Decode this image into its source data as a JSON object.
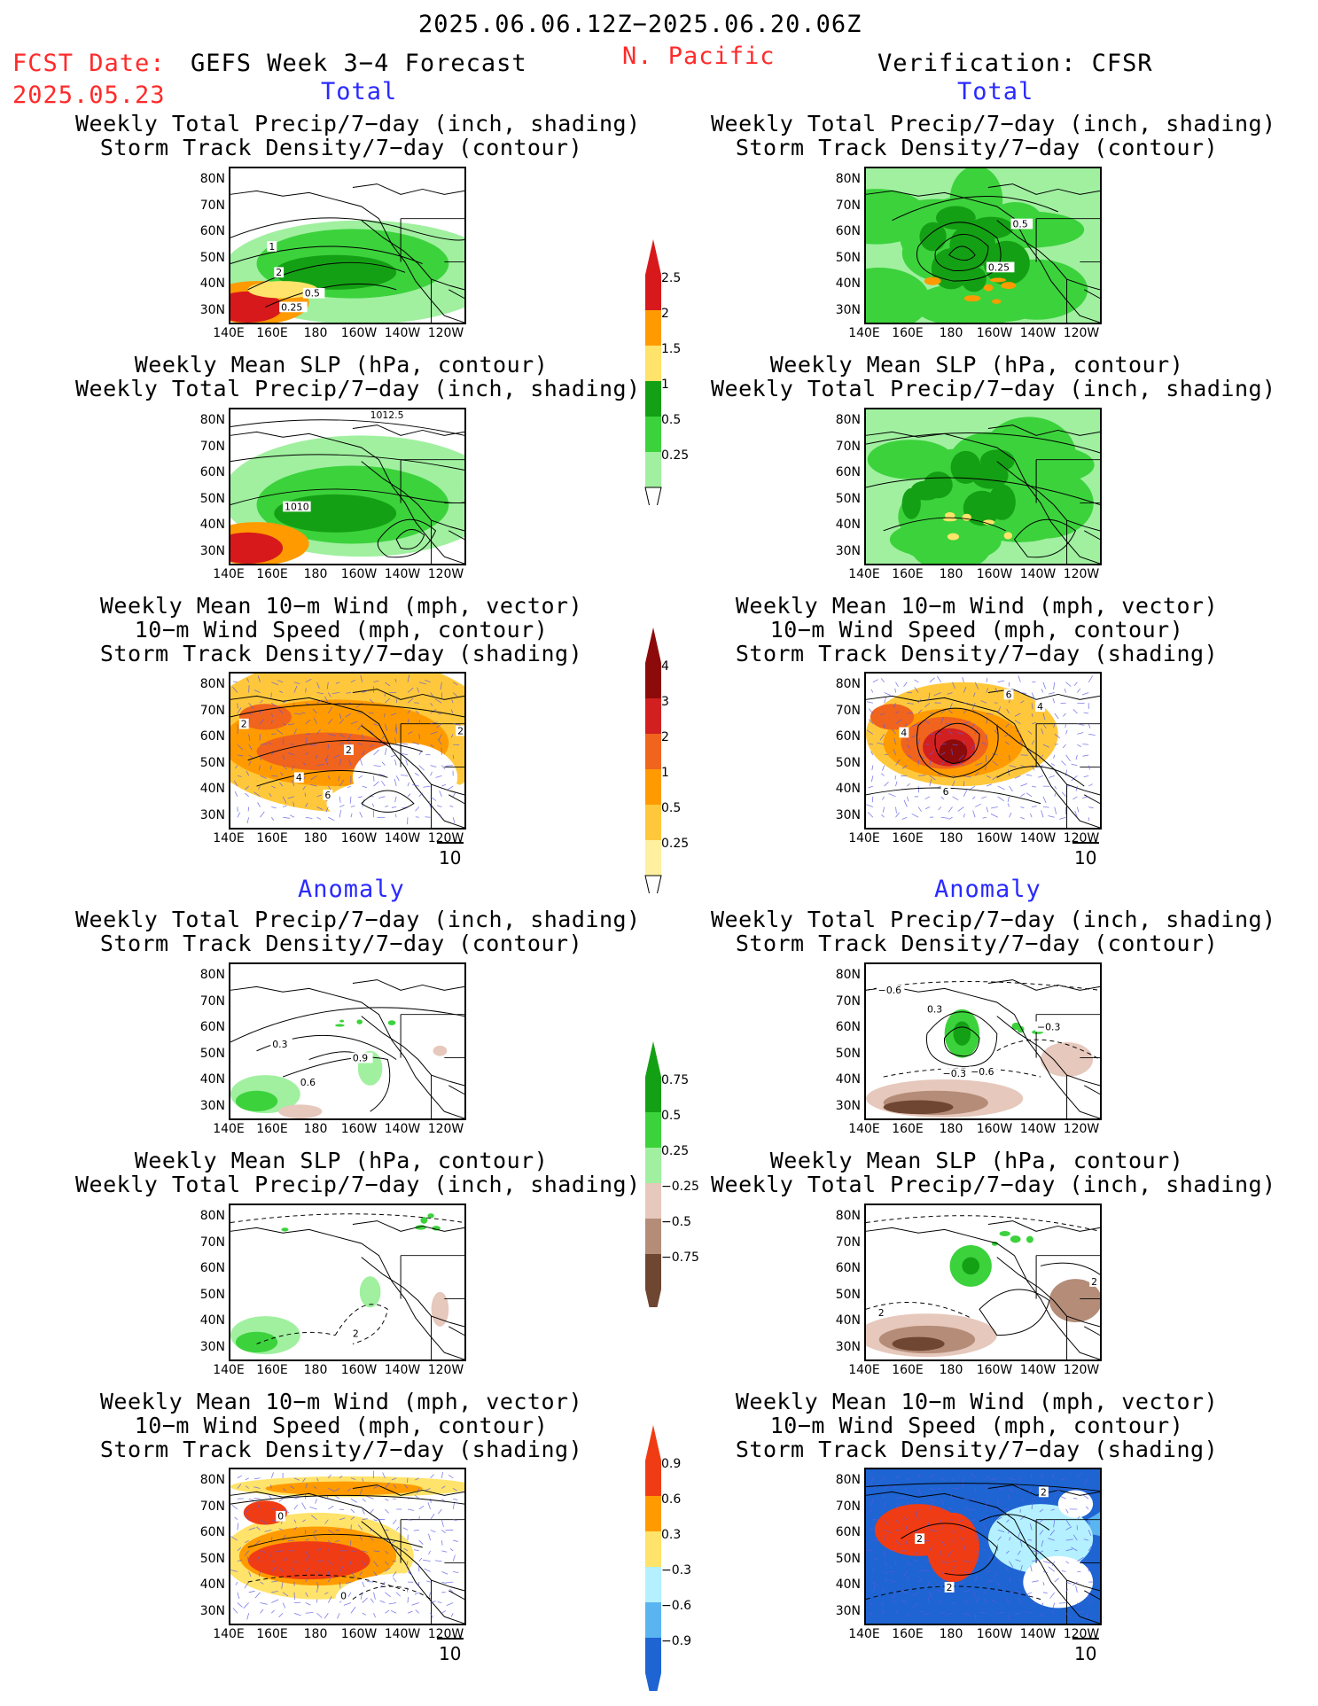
{
  "header": {
    "period": "2025.06.06.12Z−2025.06.20.06Z",
    "fcst_label": "FCST Date:",
    "fcst_date": "2025.05.23",
    "model": "GEFS Week 3−4 Forecast",
    "region": "N. Pacific",
    "verification": "Verification: CFSR"
  },
  "sections": {
    "total": "Total",
    "anomaly": "Anomaly"
  },
  "panel_titles": {
    "precip_storm": [
      "Weekly Total Precip/7−day (inch, shading)",
      "Storm Track Density/7−day (contour)"
    ],
    "slp_precip": [
      "Weekly Mean SLP (hPa, contour)",
      "Weekly Total Precip/7−day (inch, shading)"
    ],
    "wind_storm": [
      "Weekly Mean 10−m Wind (mph, vector)",
      "10−m Wind Speed (mph, contour)",
      "Storm Track Density/7−day (shading)"
    ]
  },
  "axes": {
    "lat_ticks": [
      "80N",
      "70N",
      "60N",
      "50N",
      "40N",
      "30N"
    ],
    "lon_ticks": [
      "140E",
      "160E",
      "180",
      "160W",
      "140W",
      "120W"
    ],
    "vector_ref": "10"
  },
  "contour_labels": {
    "p1": [
      "1",
      "2",
      "0.5",
      "0.25"
    ],
    "p2": [
      "0.5",
      "0.25"
    ],
    "p3": [
      "1012.5",
      "1010"
    ],
    "p5": [
      "2",
      "2",
      "4",
      "6",
      "2"
    ],
    "p6": [
      "6",
      "4",
      "4",
      "6"
    ],
    "p7": [
      "0.3",
      "0.9",
      "0.6"
    ],
    "p8": [
      "−0.6",
      "0.3",
      "−0.3",
      "−0.3",
      "−0.6"
    ],
    "p9": [
      "2"
    ],
    "p10": [
      "2",
      "2"
    ],
    "p11": [
      "0",
      "0"
    ],
    "p12": [
      "2",
      "2",
      "2"
    ]
  },
  "colorbars": [
    {
      "labels": [
        "2.5",
        "2",
        "1.5",
        "1",
        "0.5",
        "0.25"
      ],
      "colors": [
        "#d7191c",
        "#ff9b00",
        "#ffe36a",
        "#14a014",
        "#3cd23c",
        "#a0f0a0"
      ]
    },
    {
      "labels": [
        "4",
        "3",
        "2",
        "1",
        "0.5",
        "0.25"
      ],
      "colors": [
        "#8c0a0a",
        "#d22020",
        "#f0641e",
        "#ff9b00",
        "#ffc83c",
        "#fff0a0"
      ]
    },
    {
      "labels": [
        "0.75",
        "0.5",
        "0.25",
        "−0.25",
        "−0.5",
        "−0.75"
      ],
      "colors": [
        "#14a014",
        "#3cd23c",
        "#a0f0a0",
        "#e6c8bc",
        "#b48c78",
        "#6e4632"
      ]
    },
    {
      "labels": [
        "0.9",
        "0.6",
        "0.3",
        "−0.3",
        "−0.6",
        "−0.9"
      ],
      "colors": [
        "#f03c14",
        "#ff9b00",
        "#ffe36a",
        "#b4f0ff",
        "#5ab4f0",
        "#1e64d2"
      ]
    }
  ],
  "chart_data": [
    {
      "type": "heatmap",
      "panel": "forecast-total-precip-storm",
      "title": "Weekly Total Precip/7−day (inch, shading); Storm Track Density/7−day (contour)",
      "contour_levels": [
        0.25,
        0.5,
        1,
        2
      ]
    },
    {
      "type": "heatmap",
      "panel": "verification-total-precip-storm",
      "title": "Weekly Total Precip/7−day (inch, shading); Storm Track Density/7−day (contour)",
      "contour_levels": [
        0.25,
        0.5
      ]
    },
    {
      "type": "heatmap",
      "panel": "forecast-total-slp-precip",
      "title": "Weekly Mean SLP (hPa, contour); Weekly Total Precip/7−day (inch, shading)",
      "contour_levels": [
        1010,
        1012.5
      ]
    },
    {
      "type": "heatmap",
      "panel": "verification-total-slp-precip",
      "title": "Weekly Mean SLP (hPa, contour); Weekly Total Precip/7−day (inch, shading)"
    },
    {
      "type": "heatmap",
      "panel": "forecast-total-wind-storm",
      "title": "Weekly Mean 10−m Wind (mph, vector); 10−m Wind Speed (mph, contour); Storm Track Density/7−day (shading)",
      "contour_levels": [
        2,
        4,
        6
      ]
    },
    {
      "type": "heatmap",
      "panel": "verification-total-wind-storm",
      "title": "Weekly Mean 10−m Wind (mph, vector); 10−m Wind Speed (mph, contour); Storm Track Density/7−day (shading)",
      "contour_levels": [
        4,
        6
      ]
    },
    {
      "type": "heatmap",
      "panel": "forecast-anomaly-precip-storm",
      "title": "Weekly Total Precip/7−day (inch, shading); Storm Track Density/7−day (contour)",
      "contour_levels": [
        0.3,
        0.6,
        0.9
      ]
    },
    {
      "type": "heatmap",
      "panel": "verification-anomaly-precip-storm",
      "title": "Weekly Total Precip/7−day (inch, shading); Storm Track Density/7−day (contour)",
      "contour_levels": [
        -0.6,
        -0.3,
        0.3
      ]
    },
    {
      "type": "heatmap",
      "panel": "forecast-anomaly-slp-precip",
      "title": "Weekly Mean SLP (hPa, contour); Weekly Total Precip/7−day (inch, shading)",
      "contour_levels": [
        2
      ]
    },
    {
      "type": "heatmap",
      "panel": "verification-anomaly-slp-precip",
      "title": "Weekly Mean SLP (hPa, contour); Weekly Total Precip/7−day (inch, shading)",
      "contour_levels": [
        2
      ]
    },
    {
      "type": "heatmap",
      "panel": "forecast-anomaly-wind-storm",
      "title": "Weekly Mean 10−m Wind (mph, vector); 10−m Wind Speed (mph, contour); Storm Track Density/7−day (shading)",
      "contour_levels": [
        0
      ]
    },
    {
      "type": "heatmap",
      "panel": "verification-anomaly-wind-storm",
      "title": "Weekly Mean 10−m Wind (mph, vector); 10−m Wind Speed (mph, contour); Storm Track Density/7−day (shading)",
      "contour_levels": [
        2
      ]
    }
  ]
}
